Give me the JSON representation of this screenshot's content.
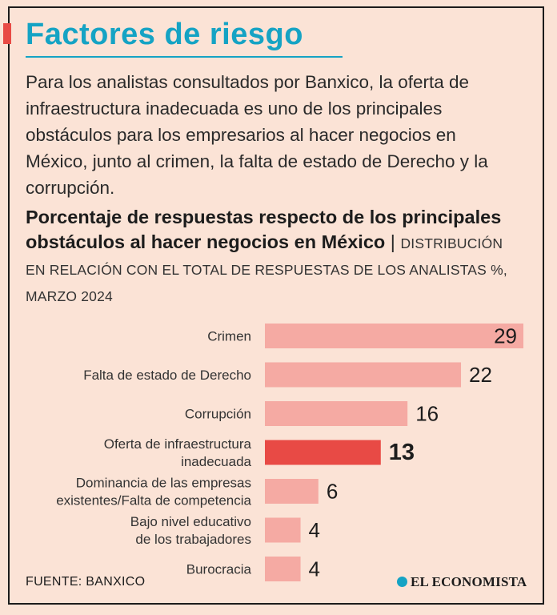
{
  "header": {
    "title": "Factores de riesgo",
    "intro": "Para los analistas consultados por Banxico,  la oferta de infraestructura inadecuada es uno de los principales obstáculos para los empresarios al hacer negocios en México, junto al crimen, la falta de estado de Derecho y la corrupción."
  },
  "subtitle": {
    "bold": "Porcentaje de respuestas respecto de los principales obstáculos al hacer negocios en México",
    "separator": "|",
    "description": "DISTRIBUCIÓN EN RELACIÓN CON EL TOTAL DE RESPUESTAS DE LOS ANALISTAS %, MARZO 2024"
  },
  "chart_data": {
    "type": "bar",
    "orientation": "horizontal",
    "categories": [
      [
        "Crimen"
      ],
      [
        "Falta de estado de Derecho"
      ],
      [
        "Corrupción"
      ],
      [
        "Oferta de infraestructura",
        "inadecuada"
      ],
      [
        "Dominancia de las empresas",
        "existentes/Falta de competencia"
      ],
      [
        "Bajo nivel educativo",
        "de los trabajadores"
      ],
      [
        "Burocracia"
      ]
    ],
    "values": [
      29,
      22,
      16,
      13,
      6,
      4,
      4
    ],
    "value_labels": [
      "29",
      "22",
      "16",
      "13",
      "6",
      "4",
      "4"
    ],
    "highlight_index": 3,
    "xlim": [
      0,
      29
    ],
    "colors": {
      "bar": "#f5aaa3",
      "highlight": "#e84a45"
    }
  },
  "footer": {
    "source": "FUENTE: BANXICO",
    "brand": "EL ECONOMISTA"
  }
}
